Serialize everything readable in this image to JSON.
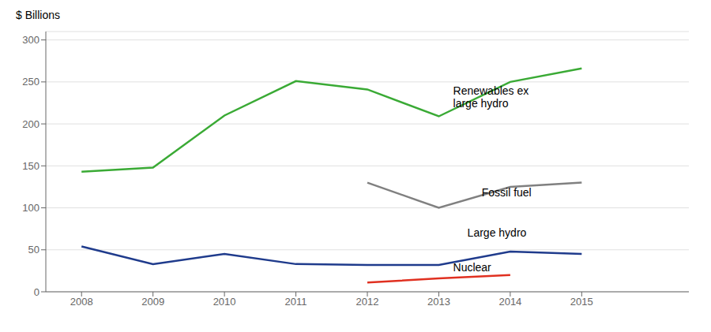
{
  "chart_data": {
    "type": "line",
    "ylabel": "$ Billions",
    "x": [
      2008,
      2009,
      2010,
      2011,
      2012,
      2013,
      2014,
      2015
    ],
    "series": [
      {
        "name": "Renewables ex\nlarge hydro",
        "color": "#3aaa35",
        "values": [
          143,
          148,
          210,
          251,
          241,
          209,
          250,
          266
        ]
      },
      {
        "name": "Fossil fuel",
        "color": "#808080",
        "values": [
          null,
          null,
          null,
          null,
          130,
          100,
          125,
          130
        ]
      },
      {
        "name": "Large hydro",
        "color": "#1f3b8c",
        "values": [
          54,
          33,
          45,
          33,
          32,
          32,
          48,
          45
        ]
      },
      {
        "name": "Nuclear",
        "color": "#e03020",
        "values": [
          null,
          null,
          null,
          null,
          11,
          16,
          20,
          null
        ]
      }
    ],
    "xlim": [
      2007.5,
      2016.5
    ],
    "xticks": [
      2008,
      2009,
      2010,
      2011,
      2012,
      2013,
      2014,
      2015
    ],
    "ylim": [
      0,
      310
    ],
    "yticks": [
      0,
      50,
      100,
      150,
      200,
      250,
      300
    ],
    "grid": "y",
    "annotations": [
      {
        "text": "Renewables ex\nlarge hydro",
        "x": 2013.2,
        "y": 232
      },
      {
        "text": "Fossil fuel",
        "x": 2013.6,
        "y": 118
      },
      {
        "text": "Large hydro",
        "x": 2013.4,
        "y": 70
      },
      {
        "text": "Nuclear",
        "x": 2013.2,
        "y": 29
      }
    ]
  }
}
